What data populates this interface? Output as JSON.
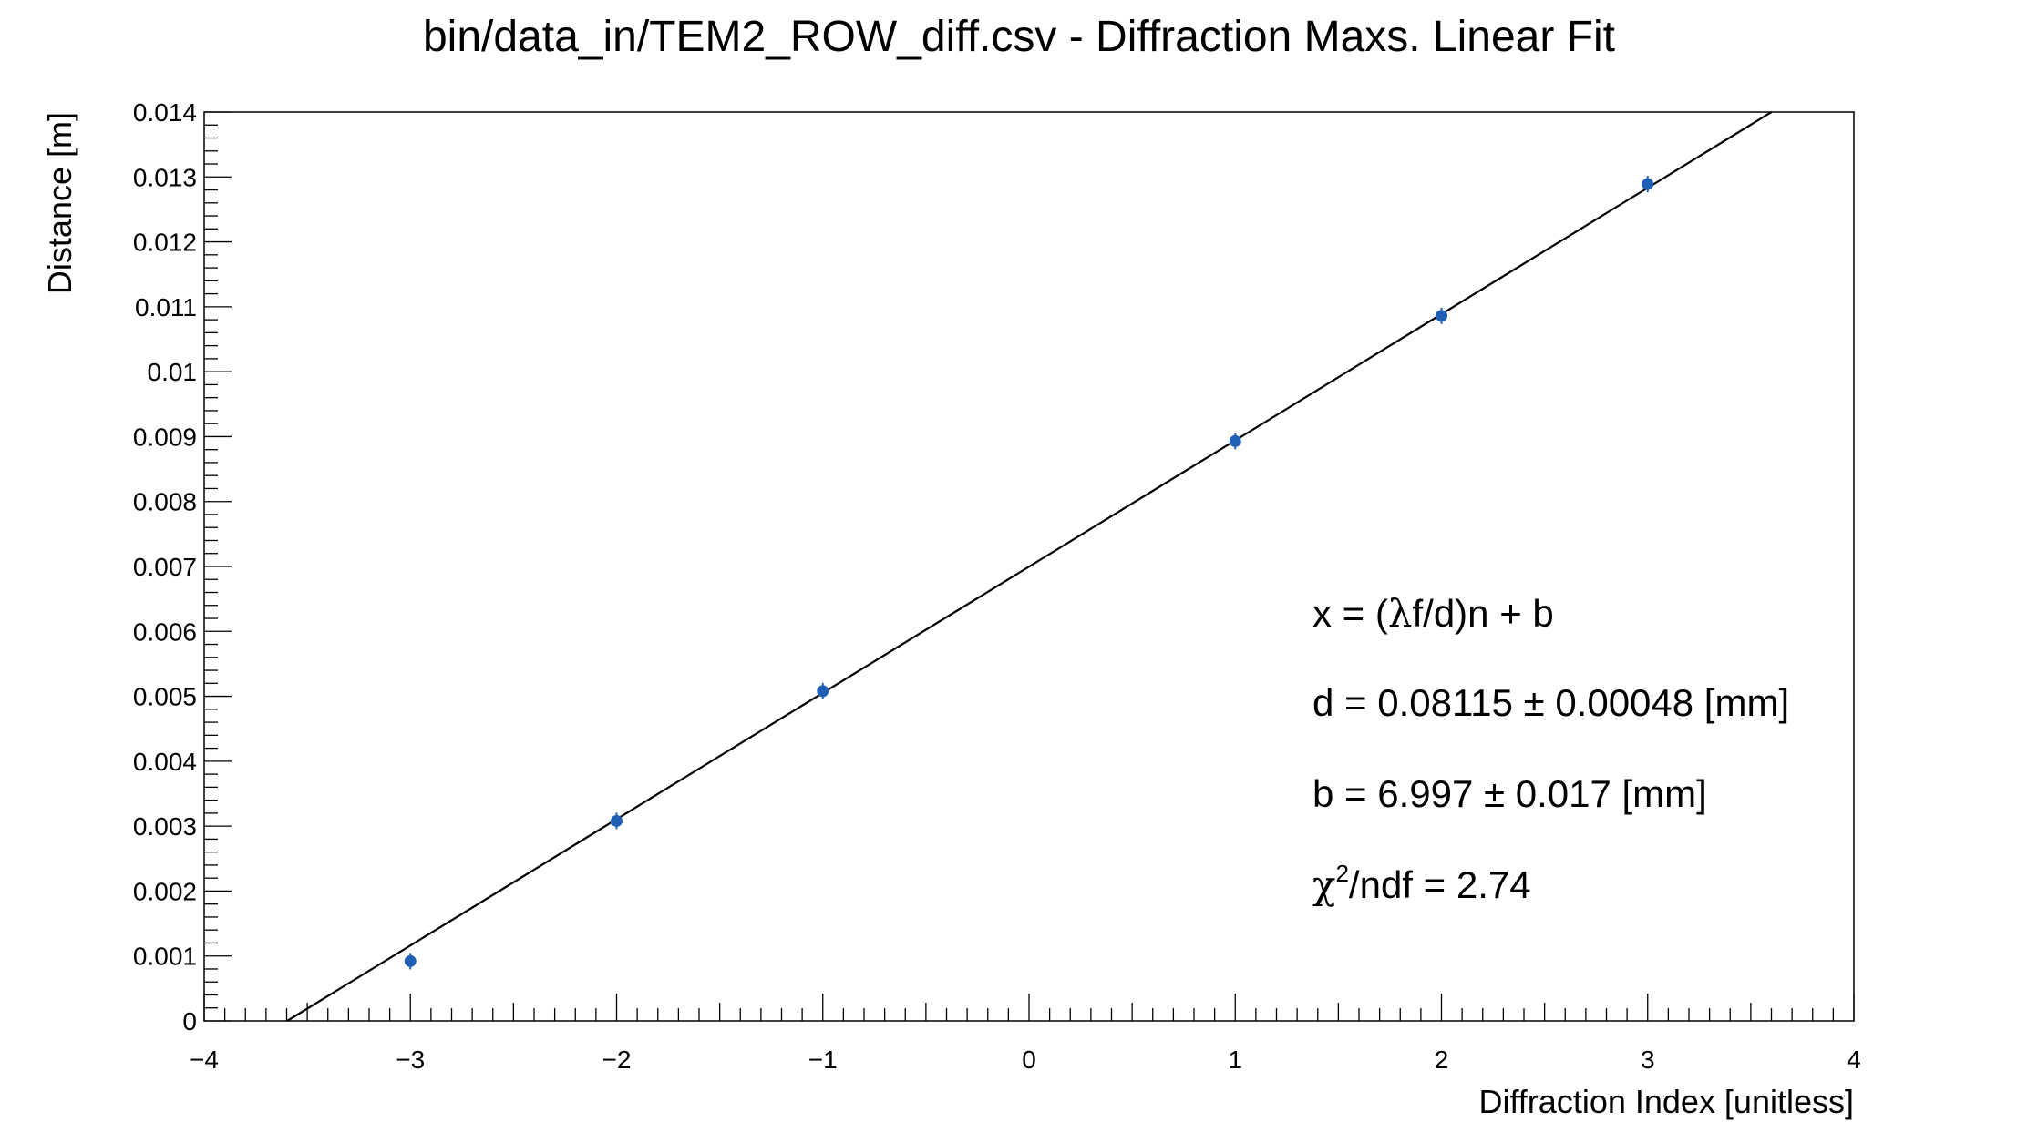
{
  "chart_data": {
    "type": "scatter",
    "title": "bin/data_in/TEM2_ROW_diff.csv - Diffraction Maxs. Linear Fit",
    "xlabel": "Diffraction Index [unitless]",
    "ylabel": "Distance [m]",
    "xlim": [
      -4,
      4
    ],
    "ylim": [
      0,
      0.014
    ],
    "x_ticks": [
      "−4",
      "−3",
      "−2",
      "−1",
      "0",
      "1",
      "2",
      "3",
      "4"
    ],
    "y_ticks": [
      "0",
      "0.001",
      "0.002",
      "0.003",
      "0.004",
      "0.005",
      "0.006",
      "0.007",
      "0.008",
      "0.009",
      "0.01",
      "0.011",
      "0.012",
      "0.013",
      "0.014"
    ],
    "grid": false,
    "legend": "none",
    "points": {
      "color": "#1f5fb4",
      "x": [
        -3,
        -2,
        -1,
        1,
        2,
        3
      ],
      "y": [
        0.00092,
        0.00308,
        0.00508,
        0.00893,
        0.01086,
        0.01289
      ]
    },
    "fit_line": {
      "color": "#000000",
      "slope": 0.001945,
      "intercept": 0.006997
    },
    "annotations": {
      "formula_lead": "x = (",
      "formula_lambda": "λ",
      "formula_tail": "f/d)n + b",
      "d_text": "d = 0.08115 ± 0.00048 [mm]",
      "b_text": "b = 6.997 ± 0.017 [mm]",
      "chi_symbol": "χ",
      "chi_sup": "2",
      "chi_tail": "/ndf = 2.74"
    }
  }
}
